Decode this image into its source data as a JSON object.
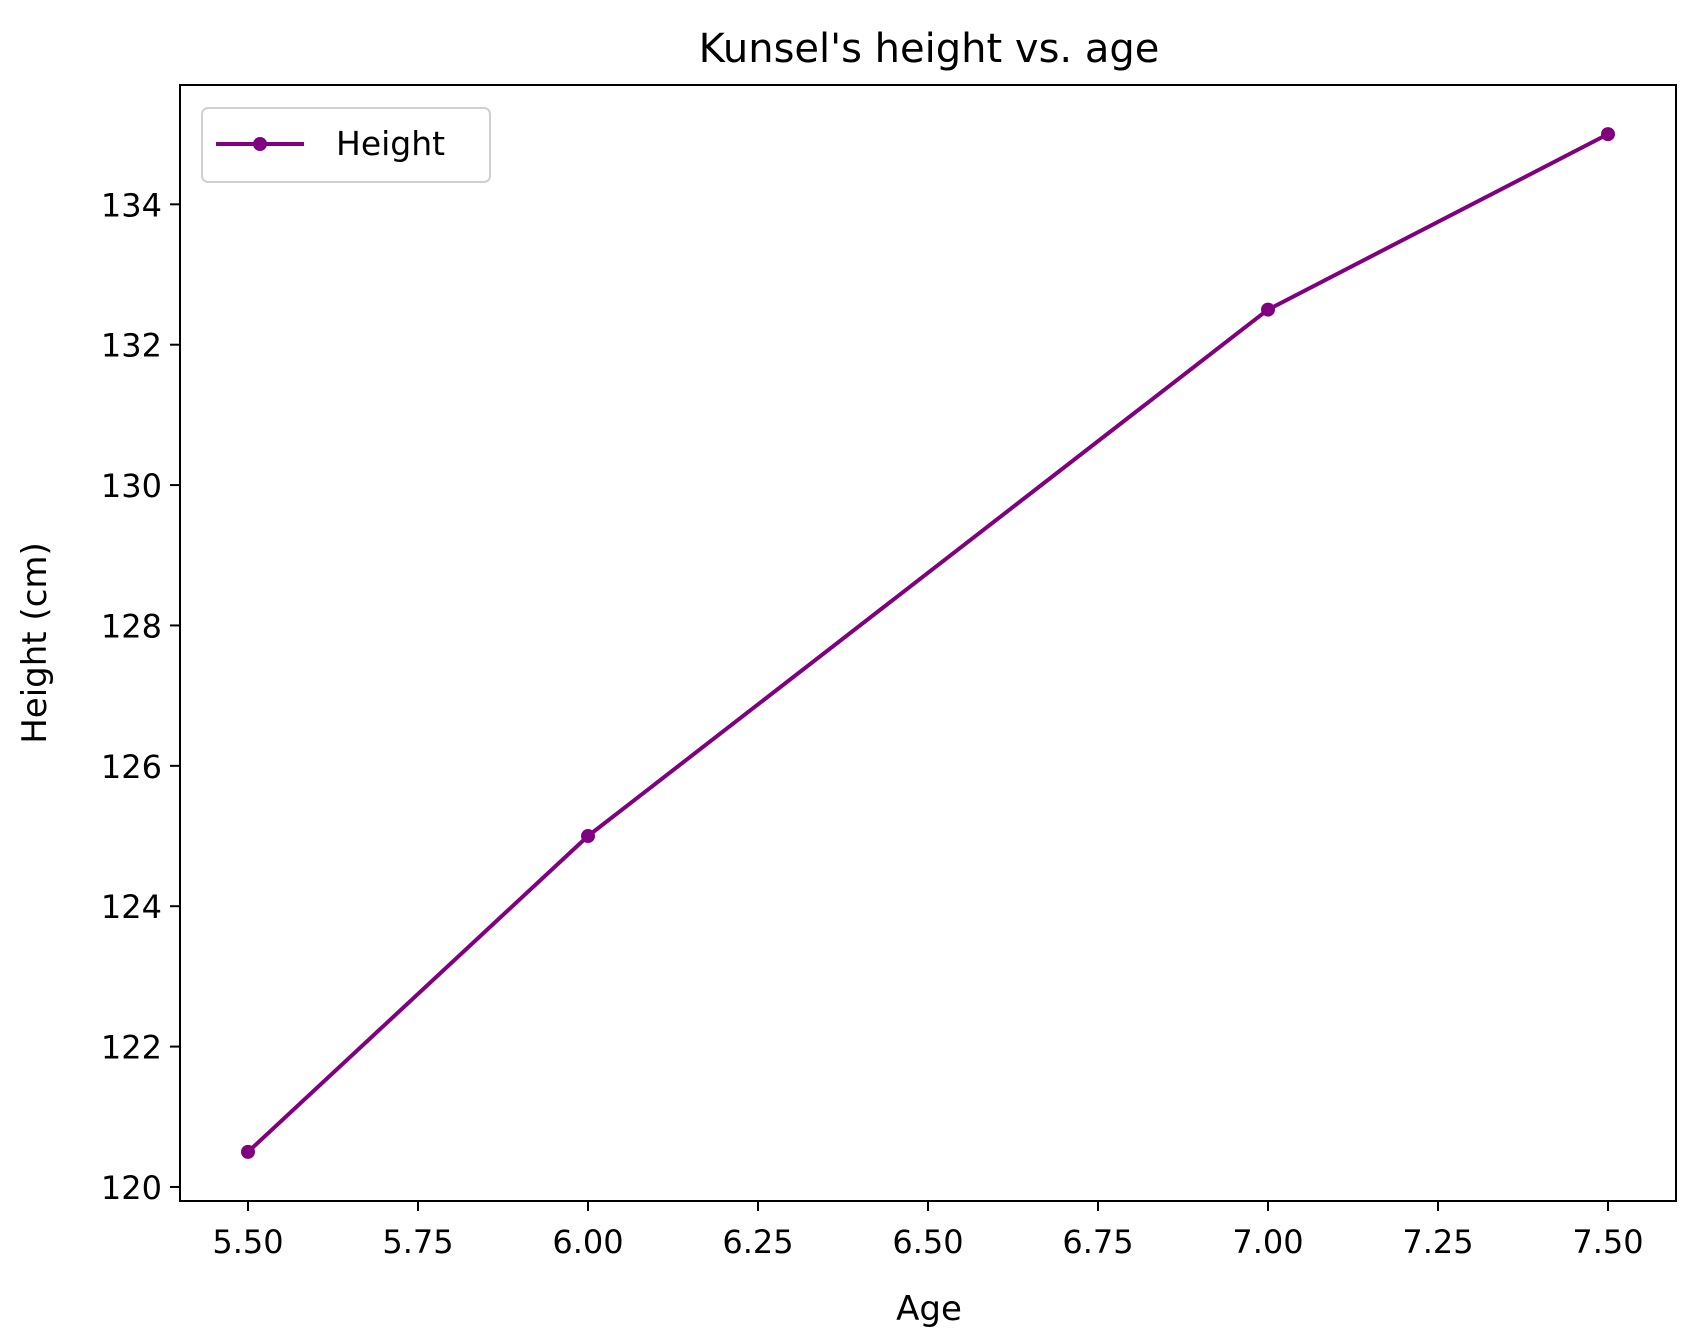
{
  "chart_data": {
    "type": "line",
    "title": "Kunsel's height vs. age",
    "xlabel": "Age",
    "ylabel": "Height (cm)",
    "xlim": [
      5.4,
      7.6
    ],
    "ylim": [
      119.8,
      135.7
    ],
    "x_ticks": [
      "5.50",
      "5.75",
      "6.00",
      "6.25",
      "6.50",
      "6.75",
      "7.00",
      "7.25",
      "7.50"
    ],
    "y_ticks": [
      "120",
      "122",
      "124",
      "126",
      "128",
      "130",
      "132",
      "134"
    ],
    "grid": false,
    "legend_position": "top-left",
    "series": [
      {
        "name": "Height",
        "color": "#800080",
        "marker": "circle",
        "x": [
          5.5,
          6.0,
          7.0,
          7.5
        ],
        "y": [
          120.5,
          125.0,
          132.5,
          135.0
        ]
      }
    ]
  }
}
